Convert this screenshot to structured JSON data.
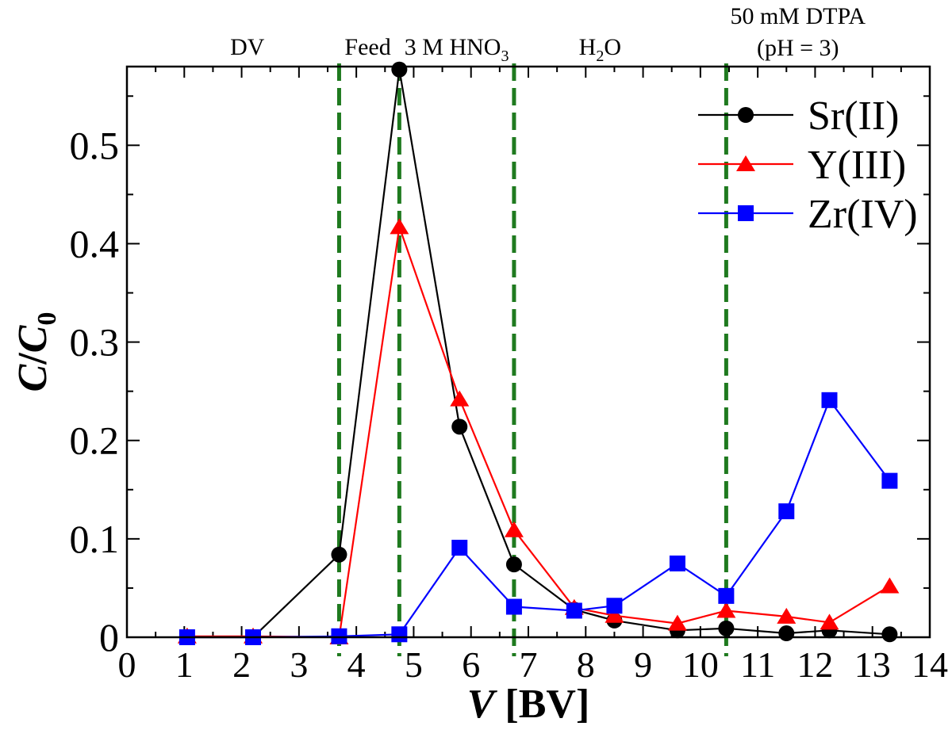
{
  "chart_data": {
    "type": "line",
    "xlabel": "V",
    "xlabel_unit": "[BV]",
    "ylabel": "C/C0",
    "ylabel_main": "C",
    "ylabel_sub": "0",
    "xlim": [
      0,
      14
    ],
    "ylim": [
      0,
      0.58
    ],
    "xticks": [
      0,
      1,
      2,
      3,
      4,
      5,
      6,
      7,
      8,
      9,
      10,
      11,
      12,
      13,
      14
    ],
    "yticks": [
      0,
      0.1,
      0.2,
      0.3,
      0.4,
      0.5
    ],
    "ytick_labels": [
      "0",
      "0.1",
      "0.2",
      "0.3",
      "0.4",
      "0.5"
    ],
    "legend_position": "top-right",
    "series": [
      {
        "name": "Sr(II)",
        "color": "#000000",
        "marker": "circle",
        "x": [
          1.05,
          2.2,
          3.7,
          4.75,
          5.8,
          6.75,
          7.8,
          8.5,
          9.6,
          10.45,
          11.5,
          12.25,
          13.3
        ],
        "y": [
          0.0,
          0.0,
          0.084,
          0.577,
          0.214,
          0.074,
          0.028,
          0.017,
          0.007,
          0.009,
          0.004,
          0.007,
          0.003
        ]
      },
      {
        "name": "Y(III)",
        "color": "#ff0000",
        "marker": "triangle",
        "x": [
          1.05,
          2.2,
          3.7,
          4.75,
          5.8,
          6.75,
          7.8,
          8.5,
          9.6,
          10.45,
          11.5,
          12.25,
          13.3
        ],
        "y": [
          0.001,
          0.001,
          0.0,
          0.417,
          0.242,
          0.109,
          0.03,
          0.022,
          0.014,
          0.027,
          0.021,
          0.015,
          0.052
        ]
      },
      {
        "name": "Zr(IV)",
        "color": "#0000ff",
        "marker": "square",
        "x": [
          1.05,
          2.2,
          3.7,
          4.75,
          5.8,
          6.75,
          7.8,
          8.5,
          9.6,
          10.45,
          11.5,
          12.25,
          13.3
        ],
        "y": [
          0.0,
          0.0,
          0.001,
          0.003,
          0.091,
          0.031,
          0.027,
          0.032,
          0.075,
          0.042,
          0.128,
          0.241,
          0.159
        ]
      }
    ],
    "phase_lines": {
      "color": "#1f7a1f",
      "x": [
        3.7,
        4.75,
        6.75,
        10.45
      ]
    },
    "phase_labels": [
      {
        "text": "DV",
        "x": 2.1
      },
      {
        "text": "Feed",
        "x": 4.2
      },
      {
        "text": "3 M HNO",
        "sub": "3",
        "x": 5.75
      },
      {
        "text": "H",
        "sub": "2",
        "tail": "O",
        "x": 8.25
      },
      {
        "text": "50 mM DTPA",
        "line2": "(pH = 3)",
        "x": 11.7
      }
    ]
  }
}
